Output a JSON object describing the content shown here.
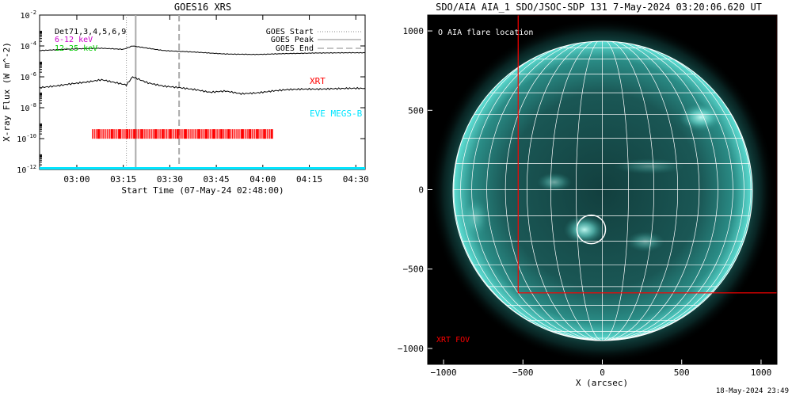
{
  "left_panel": {
    "title": "GOES16 XRS",
    "ylabel": "X-ray Flux (W m^-2)",
    "xlabel": "Start Time (07-May-24 02:48:00)",
    "info": {
      "det_label": "Det71,3,4,5,6,9",
      "band_low": "6-12 keV",
      "band_high": "12-25 keV"
    },
    "legend": {
      "start": "GOES Start",
      "peak": "GOES Peak",
      "end": "GOES End"
    },
    "markers": {
      "xrt": "XRT",
      "eve": "EVE MEGS-B"
    },
    "colors": {
      "axis": "#000000",
      "band_low": "#cc00cc",
      "band_high": "#00cc00",
      "xrt": "#ff0000",
      "eve": "#00e5ff",
      "lines": "#000000",
      "start_line": "#999999",
      "peak_line": "#aaaaaa",
      "end_line": "#aaaaaa"
    }
  },
  "right_panel": {
    "title": "SDO/AIA AIA_1 SDO/JSOC-SDP 131  7-May-2024 03:20:06.620 UT",
    "xlabel": "X (arcsec)",
    "flare_label": "O AIA flare location",
    "fov_label": "XRT FOV",
    "colors": {
      "disk_core": "#1d6e6a",
      "disk_edge": "#2fb7ad",
      "corona": "#0f3f3d",
      "grid": "#ffffff",
      "fov": "#ff0000"
    }
  },
  "footer": {
    "timestamp": "18-May-2024 23:49"
  },
  "chart_data": [
    {
      "type": "line",
      "title": "GOES16 XRS",
      "xlabel": "Start Time (07-May-24 02:48:00)",
      "ylabel": "X-ray Flux (W m^-2)",
      "y_scale": "log",
      "ylim": [
        1e-12,
        0.01
      ],
      "xlim_minutes_from_start": [
        0,
        105
      ],
      "x_ticks": [
        "03:00",
        "03:15",
        "03:30",
        "03:45",
        "04:00",
        "04:15",
        "04:30"
      ],
      "y_ticks": [
        "10^-12",
        "10^-10",
        "10^-8",
        "10^-6",
        "10^-4",
        "10^-2"
      ],
      "series": [
        {
          "name": "",
          "band": "upper",
          "x_minutes": [
            0,
            10,
            20,
            27,
            30,
            40,
            50,
            60,
            70,
            80,
            90,
            100,
            105
          ],
          "values": [
            5e-05,
            6.3e-05,
            7.1e-05,
            6e-05,
            0.0001,
            5e-05,
            4e-05,
            3e-05,
            2.8e-05,
            3.2e-05,
            3.5e-05,
            3.6e-05,
            3.6e-05
          ]
        },
        {
          "name": "",
          "band": "lower",
          "x_minutes": [
            0,
            5,
            10,
            15,
            20,
            25,
            28,
            30,
            35,
            40,
            45,
            50,
            55,
            60,
            65,
            70,
            75,
            80,
            85,
            90,
            95,
            100,
            105
          ],
          "values": [
            2e-07,
            2.5e-07,
            3.5e-07,
            4.5e-07,
            6.5e-07,
            4e-07,
            3e-07,
            1e-06,
            4e-07,
            2.5e-07,
            2e-07,
            1.5e-07,
            1e-07,
            1.2e-07,
            8e-08,
            9e-08,
            1.2e-07,
            1.5e-07,
            1.6e-07,
            1.6e-07,
            1.7e-07,
            1.8e-07,
            1.8e-07
          ]
        }
      ],
      "vertical_lines": [
        {
          "label": "GOES Start",
          "minute": 28
        },
        {
          "label": "GOES Peak",
          "minute": 31
        },
        {
          "label": "GOES End",
          "minute": 45
        }
      ],
      "xrt_coverage_minutes": [
        17,
        75
      ],
      "xrt_flux_level": 2e-10,
      "eve_flux_level": 1e-12
    },
    {
      "type": "image",
      "title": "SDO/AIA AIA_1 SDO/JSOC-SDP 131  7-May-2024 03:20:06.620 UT",
      "xlabel": "X (arcsec)",
      "xlim": [
        -1100,
        1100
      ],
      "ylim": [
        -1100,
        1100
      ],
      "x_ticks": [
        -1000,
        -500,
        0,
        500,
        1000
      ],
      "y_ticks": [
        1000,
        500,
        0,
        -500,
        -1000
      ],
      "solar_radius_arcsec": 950,
      "flare_location_arcsec": [
        -70,
        -250
      ],
      "flare_circle_radius_arcsec": 90,
      "xrt_fov_arcsec": {
        "x": [
          -530,
          1100
        ],
        "y": [
          -650,
          1100
        ]
      }
    }
  ]
}
